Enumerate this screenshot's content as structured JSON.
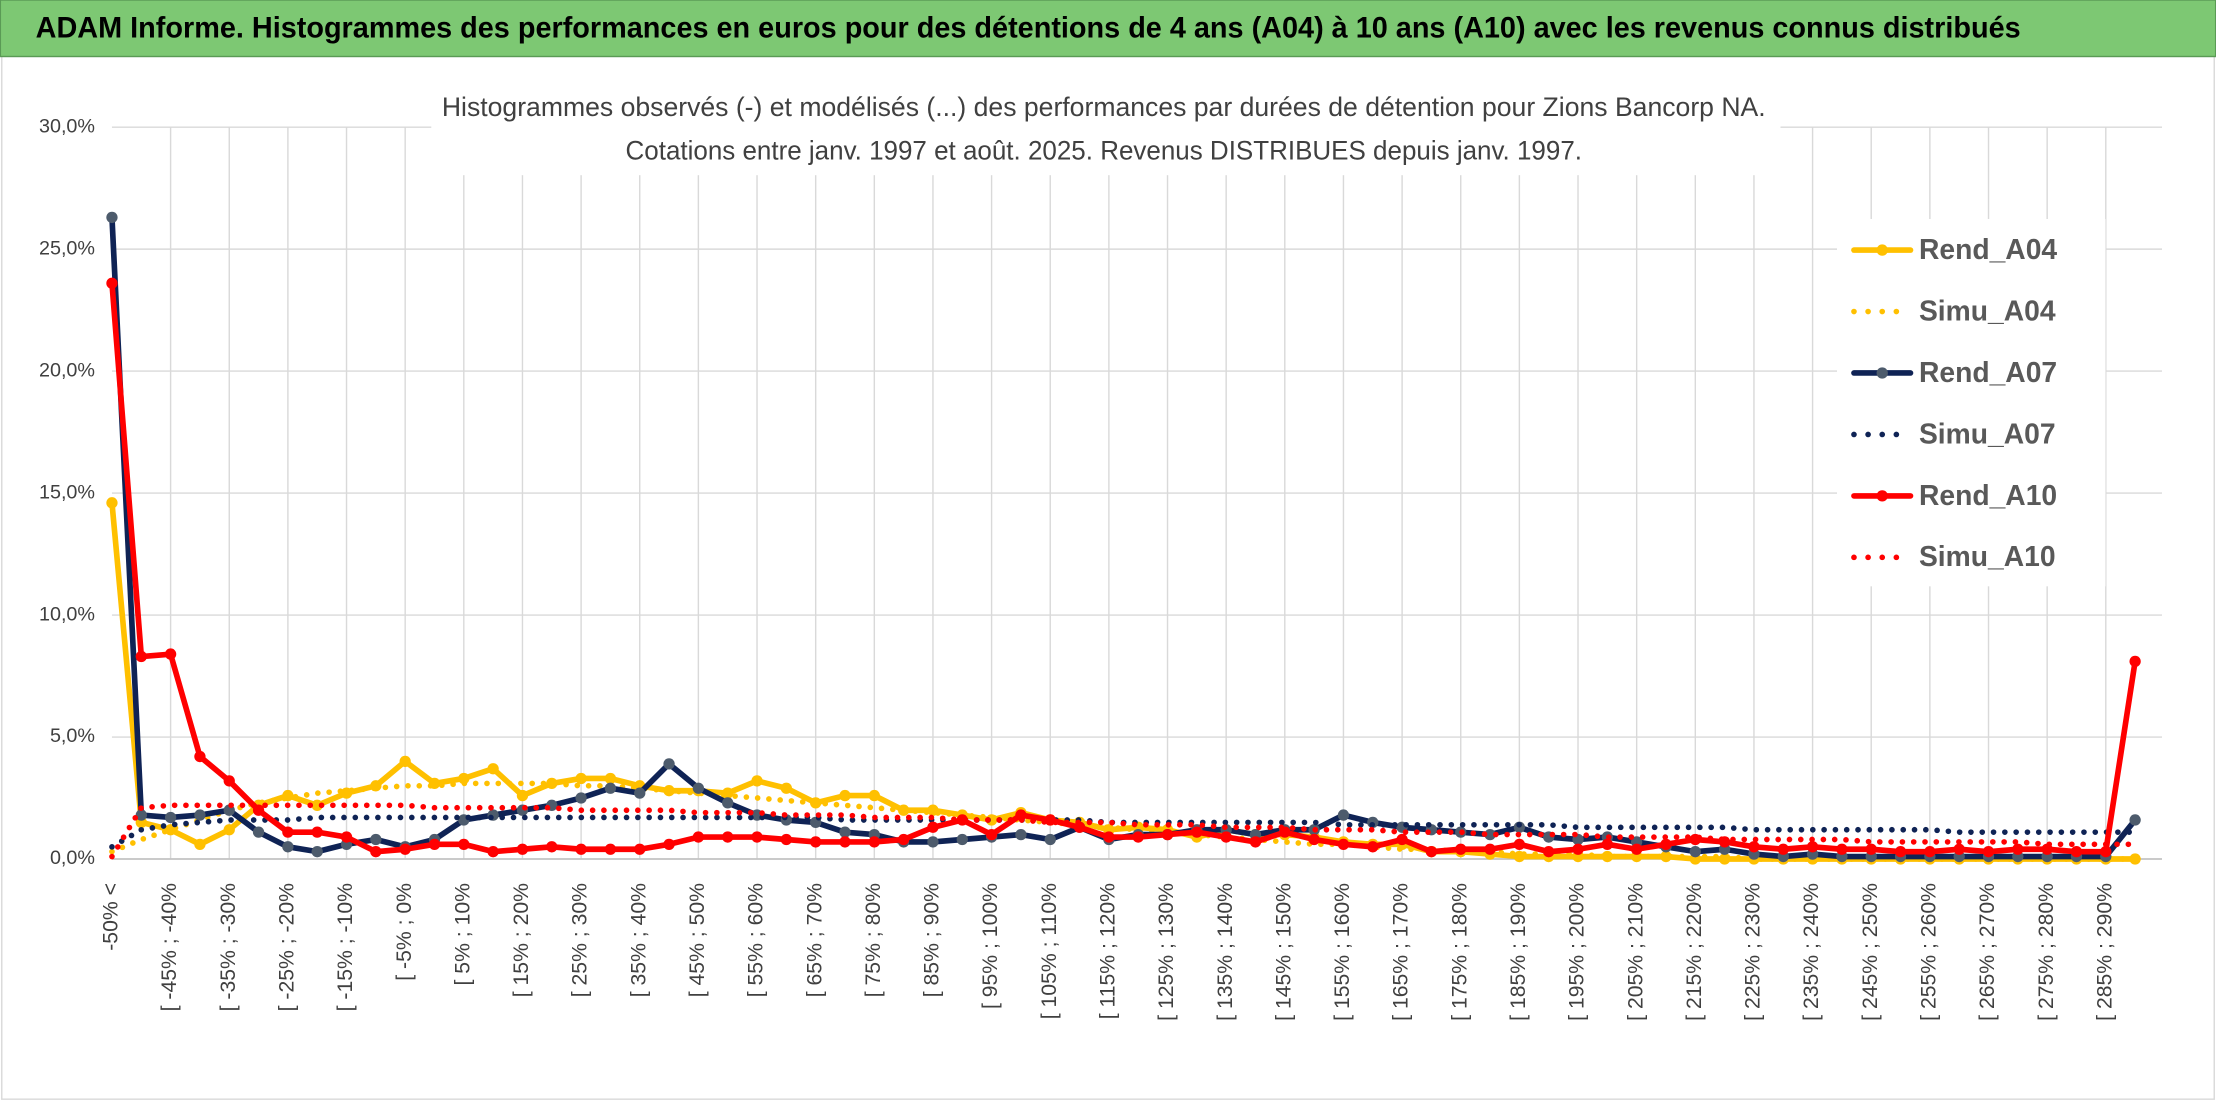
{
  "header": {
    "title": "ADAM Informe. Histogrammes des performances en euros pour des détentions de 4 ans (A04) à 10 ans (A10) avec les revenus connus distribués"
  },
  "chart_data": {
    "type": "line",
    "title": "Histogrammes observés (-) et modélisés (...) des performances par durées de détention pour Zions Bancorp NA.",
    "subtitle": "Cotations entre janv. 1997 et août. 2025. Revenus DISTRIBUES depuis janv. 1997.",
    "categories": [
      "-50% <",
      null,
      "[ -45% ; -40%",
      null,
      "[ -35% ; -30%",
      null,
      "[ -25% ; -20%",
      null,
      "[ -15% ; -10%",
      null,
      "[ -5% ; 0%",
      null,
      "[ 5% ; 10%",
      null,
      "[ 15% ; 20%",
      null,
      "[ 25% ; 30%",
      null,
      "[ 35% ; 40%",
      null,
      "[ 45% ; 50%",
      null,
      "[ 55% ; 60%",
      null,
      "[ 65% ; 70%",
      null,
      "[ 75% ; 80%",
      null,
      "[ 85% ; 90%",
      null,
      "[ 95% ; 100%",
      null,
      "[ 105% ; 110%",
      null,
      "[ 115% ; 120%",
      null,
      "[ 125% ; 130%",
      null,
      "[ 135% ; 140%",
      null,
      "[ 145% ; 150%",
      null,
      "[ 155% ; 160%",
      null,
      "[ 165% ; 170%",
      null,
      "[ 175% ; 180%",
      null,
      "[ 185% ; 190%",
      null,
      "[ 195% ; 200%",
      null,
      "[ 205% ; 210%",
      null,
      "[ 215% ; 220%",
      null,
      "[ 225% ; 230%",
      null,
      "[ 235% ; 240%",
      null,
      "[ 245% ; 250%",
      null,
      "[ 255% ; 260%",
      null,
      "[ 265% ; 270%",
      null,
      "[ 275% ; 280%",
      null,
      "[ 285% ; 290%",
      null
    ],
    "series": [
      {
        "name": "Rend_A04",
        "color": "#ffc000",
        "style": "solid",
        "values": [
          14.6,
          1.5,
          1.2,
          0.6,
          1.2,
          2.2,
          2.6,
          2.2,
          2.7,
          3.0,
          4.0,
          3.1,
          3.3,
          3.7,
          2.6,
          3.1,
          3.3,
          3.3,
          3.0,
          2.8,
          2.8,
          2.7,
          3.2,
          2.9,
          2.3,
          2.6,
          2.6,
          2.0,
          2.0,
          1.8,
          1.6,
          1.9,
          1.6,
          1.5,
          1.2,
          1.3,
          1.2,
          0.9,
          1.2,
          1.0,
          1.0,
          0.9,
          0.7,
          0.6,
          0.6,
          0.3,
          0.3,
          0.2,
          0.1,
          0.1,
          0.1,
          0.1,
          0.1,
          0.1,
          0.0,
          0.0,
          0.0,
          0.0,
          0.0,
          0.0,
          0.0,
          0.0,
          0.0,
          0.0,
          0.0,
          0.0,
          0.0,
          0.0,
          0.0,
          0.0
        ]
      },
      {
        "name": "Simu_A04",
        "color": "#ffc000",
        "style": "dotted",
        "values": [
          0.3,
          0.8,
          1.2,
          1.6,
          2.0,
          2.3,
          2.5,
          2.7,
          2.8,
          2.9,
          3.0,
          3.0,
          3.1,
          3.1,
          3.1,
          3.1,
          3.0,
          3.0,
          2.9,
          2.8,
          2.7,
          2.6,
          2.5,
          2.4,
          2.3,
          2.2,
          2.1,
          2.0,
          1.9,
          1.8,
          1.7,
          1.6,
          1.5,
          1.4,
          1.3,
          1.2,
          1.1,
          1.0,
          0.9,
          0.8,
          0.7,
          0.6,
          0.6,
          0.5,
          0.4,
          0.4,
          0.3,
          0.3,
          0.2,
          0.2,
          0.2,
          0.1,
          0.1,
          0.1,
          0.1,
          0.1,
          0.0,
          0.0,
          0.0,
          0.0,
          0.0,
          0.0,
          0.0,
          0.0,
          0.0,
          0.0,
          0.0,
          0.0,
          0.0,
          0.0
        ]
      },
      {
        "name": "Rend_A07",
        "color": "#0f2355",
        "style": "solid",
        "values": [
          26.3,
          1.8,
          1.7,
          1.8,
          2.0,
          1.1,
          0.5,
          0.3,
          0.6,
          0.8,
          0.5,
          0.8,
          1.6,
          1.8,
          2.0,
          2.2,
          2.5,
          2.9,
          2.7,
          3.9,
          2.9,
          2.3,
          1.8,
          1.6,
          1.5,
          1.1,
          1.0,
          0.7,
          0.7,
          0.8,
          0.9,
          1.0,
          0.8,
          1.3,
          0.8,
          1.0,
          1.0,
          1.2,
          1.2,
          1.0,
          1.2,
          1.2,
          1.8,
          1.5,
          1.3,
          1.2,
          1.1,
          1.0,
          1.3,
          0.9,
          0.8,
          0.9,
          0.7,
          0.5,
          0.3,
          0.4,
          0.2,
          0.1,
          0.2,
          0.1,
          0.1,
          0.1,
          0.1,
          0.1,
          0.1,
          0.1,
          0.1,
          0.1,
          0.1,
          1.6
        ]
      },
      {
        "name": "Simu_A07",
        "color": "#0f2355",
        "style": "dotted",
        "values": [
          0.5,
          1.2,
          1.4,
          1.5,
          1.6,
          1.6,
          1.6,
          1.7,
          1.7,
          1.7,
          1.7,
          1.7,
          1.7,
          1.7,
          1.7,
          1.7,
          1.7,
          1.7,
          1.7,
          1.7,
          1.7,
          1.7,
          1.7,
          1.7,
          1.7,
          1.6,
          1.6,
          1.6,
          1.6,
          1.6,
          1.6,
          1.6,
          1.6,
          1.6,
          1.5,
          1.5,
          1.5,
          1.5,
          1.5,
          1.5,
          1.5,
          1.5,
          1.4,
          1.4,
          1.4,
          1.4,
          1.4,
          1.4,
          1.4,
          1.4,
          1.3,
          1.3,
          1.3,
          1.3,
          1.3,
          1.3,
          1.2,
          1.2,
          1.2,
          1.2,
          1.2,
          1.2,
          1.2,
          1.1,
          1.1,
          1.1,
          1.1,
          1.1,
          1.1,
          1.1
        ]
      },
      {
        "name": "Rend_A10",
        "color": "#ff0000",
        "style": "solid",
        "values": [
          23.6,
          8.3,
          8.4,
          4.2,
          3.2,
          2.0,
          1.1,
          1.1,
          0.9,
          0.3,
          0.4,
          0.6,
          0.6,
          0.3,
          0.4,
          0.5,
          0.4,
          0.4,
          0.4,
          0.6,
          0.9,
          0.9,
          0.9,
          0.8,
          0.7,
          0.7,
          0.7,
          0.8,
          1.3,
          1.6,
          1.0,
          1.8,
          1.6,
          1.3,
          0.9,
          0.9,
          1.0,
          1.1,
          0.9,
          0.7,
          1.1,
          0.8,
          0.6,
          0.5,
          0.8,
          0.3,
          0.4,
          0.4,
          0.6,
          0.3,
          0.4,
          0.6,
          0.4,
          0.6,
          0.8,
          0.7,
          0.5,
          0.4,
          0.5,
          0.4,
          0.4,
          0.3,
          0.3,
          0.4,
          0.3,
          0.4,
          0.4,
          0.3,
          0.3,
          8.1
        ]
      },
      {
        "name": "Simu_A10",
        "color": "#ff0000",
        "style": "dotted",
        "values": [
          0.1,
          2.1,
          2.2,
          2.2,
          2.2,
          2.2,
          2.2,
          2.2,
          2.2,
          2.2,
          2.2,
          2.1,
          2.1,
          2.1,
          2.1,
          2.1,
          2.0,
          2.0,
          2.0,
          2.0,
          1.9,
          1.9,
          1.9,
          1.8,
          1.8,
          1.8,
          1.7,
          1.7,
          1.7,
          1.6,
          1.6,
          1.6,
          1.5,
          1.5,
          1.5,
          1.4,
          1.4,
          1.4,
          1.3,
          1.3,
          1.3,
          1.2,
          1.2,
          1.2,
          1.1,
          1.1,
          1.1,
          1.0,
          1.0,
          1.0,
          1.0,
          0.9,
          0.9,
          0.9,
          0.9,
          0.8,
          0.8,
          0.8,
          0.8,
          0.8,
          0.7,
          0.7,
          0.7,
          0.7,
          0.7,
          0.7,
          0.6,
          0.6,
          0.6,
          0.6
        ]
      }
    ],
    "ylim": [
      0,
      30
    ],
    "yticks": [
      {
        "value": 0,
        "label": "0,0%"
      },
      {
        "value": 5,
        "label": "5,0%"
      },
      {
        "value": 10,
        "label": "10,0%"
      },
      {
        "value": 15,
        "label": "15,0%"
      },
      {
        "value": 20,
        "label": "20,0%"
      },
      {
        "value": 25,
        "label": "25,0%"
      },
      {
        "value": 30,
        "label": "30,0%"
      }
    ],
    "grid": true,
    "legend": "right"
  }
}
